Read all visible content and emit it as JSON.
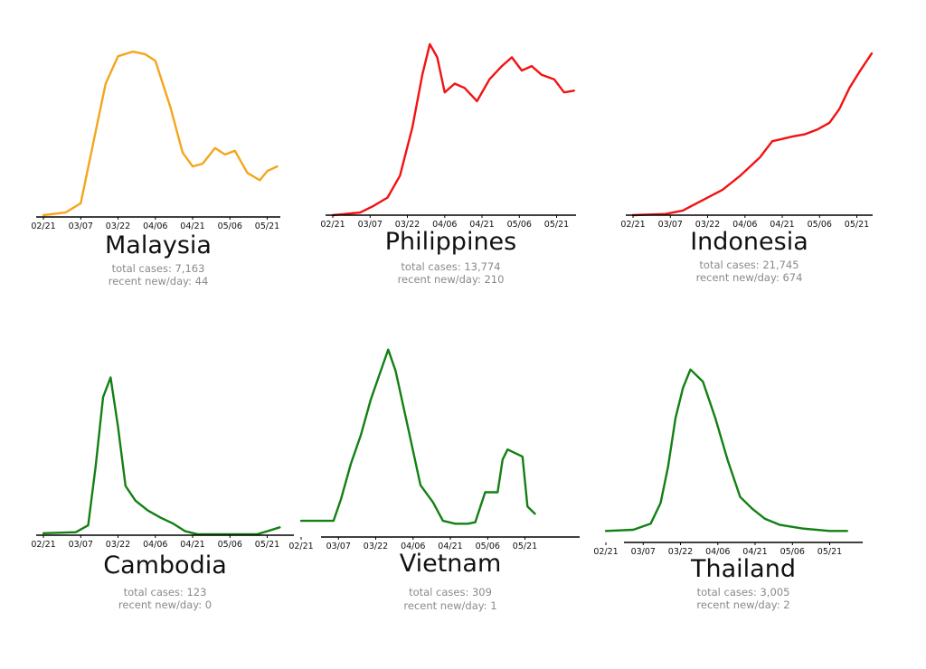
{
  "colors": {
    "orange": "#f5a51c",
    "red": "#f21212",
    "green": "#138013",
    "axis": "#000000",
    "stat_text": "#8a8a8a"
  },
  "chart_data": [
    {
      "type": "line",
      "title": "Malaysia",
      "color": "#f5a51c",
      "total_cases": "total cases: 7,163",
      "recent_new_per_day": "recent new/day: 44",
      "x_ticks": [
        "02/21",
        "03/07",
        "03/22",
        "04/06",
        "04/21",
        "05/06",
        "05/21"
      ],
      "series": [
        {
          "x": [
            "2020-02-21",
            "2020-03-01",
            "2020-03-07",
            "2020-03-12",
            "2020-03-17",
            "2020-03-22",
            "2020-03-28",
            "2020-04-02",
            "2020-04-06",
            "2020-04-12",
            "2020-04-17",
            "2020-04-21",
            "2020-04-25",
            "2020-04-30",
            "2020-05-04",
            "2020-05-08",
            "2020-05-13",
            "2020-05-18",
            "2020-05-21",
            "2020-05-25"
          ],
          "y": [
            2,
            5,
            15,
            80,
            145,
            175,
            180,
            177,
            170,
            120,
            70,
            55,
            58,
            75,
            68,
            72,
            48,
            40,
            50,
            55
          ]
        }
      ],
      "ylim": [
        0,
        185
      ],
      "grid": false
    },
    {
      "type": "line",
      "title": "Philippines",
      "color": "#f21212",
      "total_cases": "total cases: 13,774",
      "recent_new_per_day": "recent new/day: 210",
      "x_ticks": [
        "02/21",
        "03/07",
        "03/22",
        "04/06",
        "04/21",
        "05/06",
        "05/21"
      ],
      "series": [
        {
          "x": [
            "2020-02-21",
            "2020-03-03",
            "2020-03-08",
            "2020-03-14",
            "2020-03-19",
            "2020-03-24",
            "2020-03-28",
            "2020-03-31",
            "2020-04-03",
            "2020-04-06",
            "2020-04-10",
            "2020-04-14",
            "2020-04-19",
            "2020-04-24",
            "2020-04-29",
            "2020-05-03",
            "2020-05-07",
            "2020-05-11",
            "2020-05-15",
            "2020-05-20",
            "2020-05-24",
            "2020-05-28"
          ],
          "y": [
            0,
            3,
            10,
            20,
            45,
            100,
            160,
            195,
            180,
            140,
            150,
            145,
            130,
            155,
            170,
            180,
            165,
            170,
            160,
            155,
            140,
            142
          ]
        }
      ],
      "ylim": [
        0,
        200
      ],
      "grid": false
    },
    {
      "type": "line",
      "title": "Indonesia",
      "color": "#f21212",
      "total_cases": "total cases: 21,745",
      "recent_new_per_day": "recent new/day: 674",
      "x_ticks": [
        "02/21",
        "03/07",
        "03/22",
        "04/06",
        "04/21",
        "05/06",
        "05/21"
      ],
      "series": [
        {
          "x": [
            "2020-02-21",
            "2020-03-05",
            "2020-03-12",
            "2020-03-20",
            "2020-03-28",
            "2020-04-04",
            "2020-04-12",
            "2020-04-17",
            "2020-04-21",
            "2020-04-25",
            "2020-04-30",
            "2020-05-05",
            "2020-05-10",
            "2020-05-14",
            "2020-05-18",
            "2020-05-22",
            "2020-05-27"
          ],
          "y": [
            0,
            5,
            20,
            65,
            110,
            170,
            250,
            320,
            330,
            340,
            350,
            370,
            400,
            460,
            550,
            620,
            700
          ]
        }
      ],
      "ylim": [
        0,
        720
      ],
      "grid": false
    },
    {
      "type": "line",
      "title": "Cambodia",
      "color": "#138013",
      "total_cases": "total cases: 123",
      "recent_new_per_day": "recent new/day: 0",
      "x_ticks": [
        "02/21",
        "03/07",
        "03/22",
        "04/06",
        "04/21",
        "05/06",
        "05/21"
      ],
      "series": [
        {
          "x": [
            "2020-02-21",
            "2020-03-05",
            "2020-03-10",
            "2020-03-13",
            "2020-03-16",
            "2020-03-19",
            "2020-03-22",
            "2020-03-25",
            "2020-03-29",
            "2020-04-03",
            "2020-04-08",
            "2020-04-13",
            "2020-04-18",
            "2020-04-23",
            "2020-05-01",
            "2020-05-10",
            "2020-05-17",
            "2020-05-21",
            "2020-05-26"
          ],
          "y": [
            0.2,
            0.3,
            1,
            7,
            14,
            16,
            11,
            5,
            3.5,
            2.5,
            1.8,
            1.2,
            0.4,
            0.1,
            0.1,
            0.1,
            0.1,
            0.4,
            0.8
          ]
        }
      ],
      "ylim": [
        0,
        16.5
      ],
      "grid": false
    },
    {
      "type": "line",
      "title": "Vietnam",
      "color": "#138013",
      "total_cases": "total cases: 309",
      "recent_new_per_day": "recent new/day: 1",
      "x_ticks": [
        "02/21",
        "03/07",
        "03/22",
        "04/06",
        "04/21",
        "05/06",
        "05/21"
      ],
      "series": [
        {
          "x": [
            "2020-02-21",
            "2020-03-05",
            "2020-03-08",
            "2020-03-12",
            "2020-03-16",
            "2020-03-20",
            "2020-03-24",
            "2020-03-27",
            "2020-03-30",
            "2020-04-04",
            "2020-04-09",
            "2020-04-14",
            "2020-04-18",
            "2020-04-23",
            "2020-04-28",
            "2020-05-01",
            "2020-05-05",
            "2020-05-10",
            "2020-05-12",
            "2020-05-14",
            "2020-05-20",
            "2020-05-22",
            "2020-05-25"
          ],
          "y": [
            0.5,
            0.5,
            2,
            4.5,
            6.5,
            9,
            11,
            12.5,
            11,
            7,
            3,
            1.8,
            0.5,
            0.3,
            0.3,
            0.4,
            2.5,
            2.5,
            4.8,
            5.5,
            5,
            1.5,
            1
          ]
        }
      ],
      "ylim": [
        0,
        12.8
      ],
      "grid": false
    },
    {
      "type": "line",
      "title": "Thailand",
      "color": "#138013",
      "total_cases": "total cases: 3,005",
      "recent_new_per_day": "recent new/day: 2",
      "x_ticks": [
        "02/21",
        "03/07",
        "03/22",
        "04/06",
        "04/21",
        "05/06",
        "05/21"
      ],
      "series": [
        {
          "x": [
            "2020-02-21",
            "2020-03-03",
            "2020-03-10",
            "2020-03-14",
            "2020-03-17",
            "2020-03-20",
            "2020-03-23",
            "2020-03-26",
            "2020-03-31",
            "2020-04-05",
            "2020-04-10",
            "2020-04-15",
            "2020-04-20",
            "2020-04-25",
            "2020-05-01",
            "2020-05-10",
            "2020-05-21",
            "2020-05-28"
          ],
          "y": [
            2,
            3,
            8,
            25,
            55,
            95,
            120,
            135,
            125,
            95,
            60,
            30,
            20,
            12,
            7,
            4,
            2,
            2
          ]
        }
      ],
      "ylim": [
        0,
        140
      ],
      "grid": false
    }
  ]
}
